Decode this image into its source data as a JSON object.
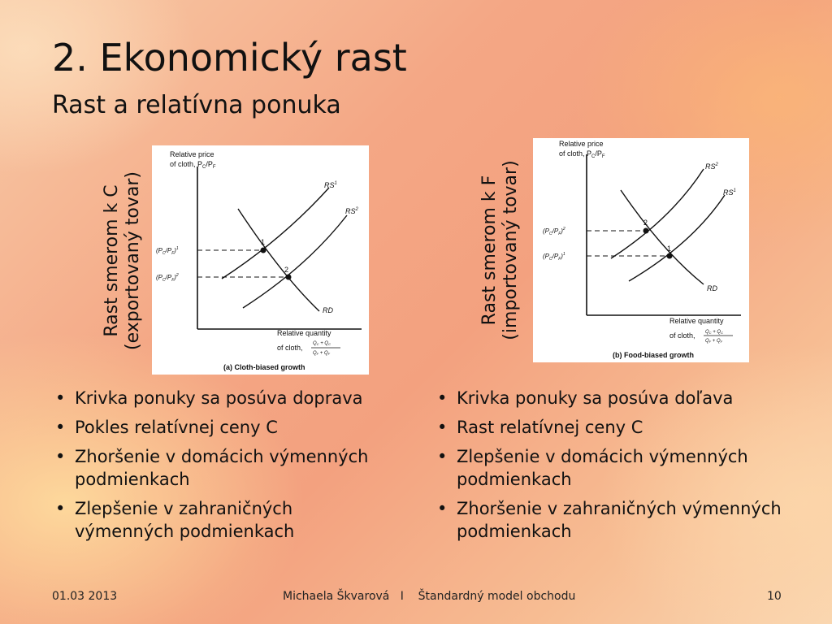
{
  "slide": {
    "title": "2. Ekonomický rast",
    "subtitle": "Rast a relatívna ponuka"
  },
  "left": {
    "vertical_label_line1": "Rast smerom k C",
    "vertical_label_line2": "(exportovaný tovar)",
    "diagram": {
      "y_axis_line1": "Relative price",
      "y_axis_line2": "of cloth, P",
      "x_axis_line1": "Relative quantity",
      "x_axis_line2": "of cloth,",
      "curve_rs1": "RS",
      "curve_rs2": "RS",
      "curve_rd": "RD",
      "point1": "1",
      "point2": "2",
      "price1": "(P",
      "price2": "(P",
      "caption": "(a) Cloth-biased growth"
    },
    "bullets": [
      "Krivka ponuky sa posúva doprava",
      "Pokles relatívnej ceny C",
      "Zhoršenie v domácich výmenných podmienkach",
      "Zlepšenie v zahraničných výmenných podmienkach"
    ]
  },
  "right": {
    "vertical_label_line1": "Rast smerom k F",
    "vertical_label_line2": "(importovaný tovar)",
    "diagram": {
      "y_axis_line1": "Relative price",
      "y_axis_line2": "of cloth, P",
      "x_axis_line1": "Relative quantity",
      "x_axis_line2": "of cloth,",
      "curve_rs1": "RS",
      "curve_rs2": "RS",
      "curve_rd": "RD",
      "point1": "1",
      "point2": "2",
      "price1": "(P",
      "price2": "(P",
      "caption": "(b) Food-biased growth"
    },
    "bullets": [
      "Krivka ponuky sa posúva doľava",
      "Rast relatívnej ceny C",
      "Zlepšenie v domácich výmenných podmienkach",
      "Zhoršenie v zahraničných výmenných podmienkach"
    ]
  },
  "footer": {
    "date": "01.03 2013",
    "center": "Michaela Škvarová   I    Štandardný model obchodu",
    "page": "10"
  }
}
